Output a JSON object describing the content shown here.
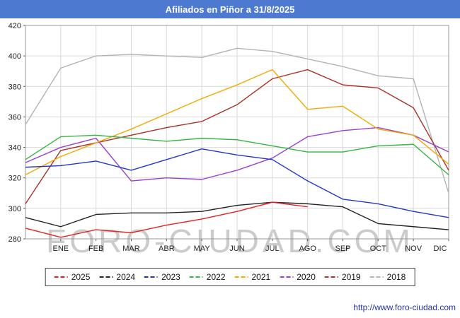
{
  "header": {
    "title": "Afiliados en Piñor a 31/8/2025",
    "bg_color": "#4e79d0",
    "text_color": "#ffffff"
  },
  "watermark": "FORO-CIUDAD.COM",
  "footer": {
    "url": "http://www.foro-ciudad.com",
    "color": "#2233aa"
  },
  "chart_data": {
    "type": "line",
    "title": "Afiliados en Piñor a 31/8/2025",
    "xlabel": "",
    "ylabel": "",
    "ylim": [
      280,
      420
    ],
    "ytick_step": 20,
    "grid": true,
    "legend_position": "bottom",
    "categories": [
      "",
      "ENE",
      "FEB",
      "MAR",
      "ABR",
      "MAY",
      "JUN",
      "JUL",
      "AGO",
      "SEP",
      "OCT",
      "NOV",
      "DIC"
    ],
    "note": "First point of each series sits on the left axis before the ENE gridline; 2025 data runs only through AGO",
    "series": [
      {
        "name": "2025",
        "color": "#e82222",
        "values": [
          287,
          281,
          286,
          284,
          289,
          293,
          298,
          304,
          301
        ]
      },
      {
        "name": "2024",
        "color": "#222222",
        "values": [
          294,
          288,
          296,
          297,
          297,
          298,
          302,
          304,
          303,
          301,
          290,
          288,
          286
        ]
      },
      {
        "name": "2023",
        "color": "#2436cc",
        "values": [
          327,
          328,
          331,
          325,
          332,
          339,
          335,
          332,
          318,
          306,
          303,
          298,
          294
        ]
      },
      {
        "name": "2022",
        "color": "#33b540",
        "values": [
          332,
          347,
          348,
          346,
          344,
          346,
          345,
          341,
          337,
          337,
          341,
          342,
          322
        ]
      },
      {
        "name": "2021",
        "color": "#f2a900",
        "values": [
          322,
          334,
          343,
          352,
          362,
          372,
          381,
          391,
          365,
          367,
          352,
          348,
          329
        ]
      },
      {
        "name": "2020",
        "color": "#9a3fd1",
        "values": [
          330,
          340,
          346,
          318,
          320,
          319,
          325,
          333,
          347,
          351,
          353,
          348,
          337
        ]
      },
      {
        "name": "2019",
        "color": "#a93226",
        "values": [
          303,
          338,
          343,
          348,
          353,
          357,
          368,
          385,
          391,
          381,
          379,
          366,
          325
        ]
      },
      {
        "name": "2018",
        "color": "#b3b3b3",
        "values": [
          355,
          392,
          400,
          401,
          400,
          399,
          405,
          403,
          398,
          393,
          387,
          385,
          310
        ]
      }
    ]
  }
}
